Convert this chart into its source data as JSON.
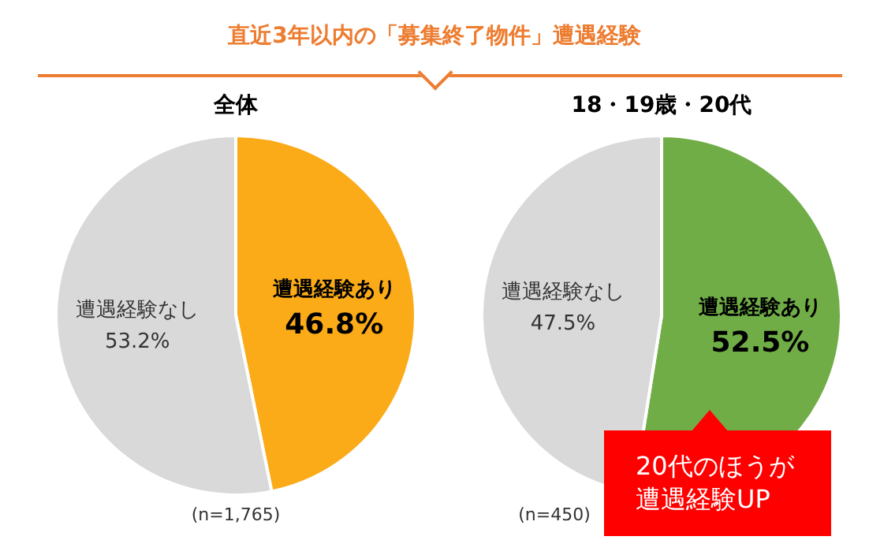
{
  "chart_data": [
    {
      "type": "pie",
      "title": "直近3年以内の「募集終了物件」遭遇経験",
      "subtitle": "全体",
      "categories": [
        "遭遇経験あり",
        "遭遇経験なし"
      ],
      "values": [
        46.8,
        53.2
      ],
      "colors": [
        "#fbab18",
        "#d9d9d9"
      ],
      "value_labels": [
        "46.8%",
        "53.2%"
      ],
      "legend": false,
      "annotations": [
        "(n=1,765)"
      ]
    },
    {
      "type": "pie",
      "subtitle": "18・19歳・20代",
      "categories": [
        "遭遇経験あり",
        "遭遇経験なし"
      ],
      "values": [
        52.5,
        47.5
      ],
      "colors": [
        "#70ad47",
        "#d9d9d9"
      ],
      "value_labels": [
        "52.5%",
        "47.5%"
      ],
      "legend": false,
      "annotations": [
        "(n=450)",
        "20代のほうが遭遇経験UP"
      ]
    }
  ]
}
